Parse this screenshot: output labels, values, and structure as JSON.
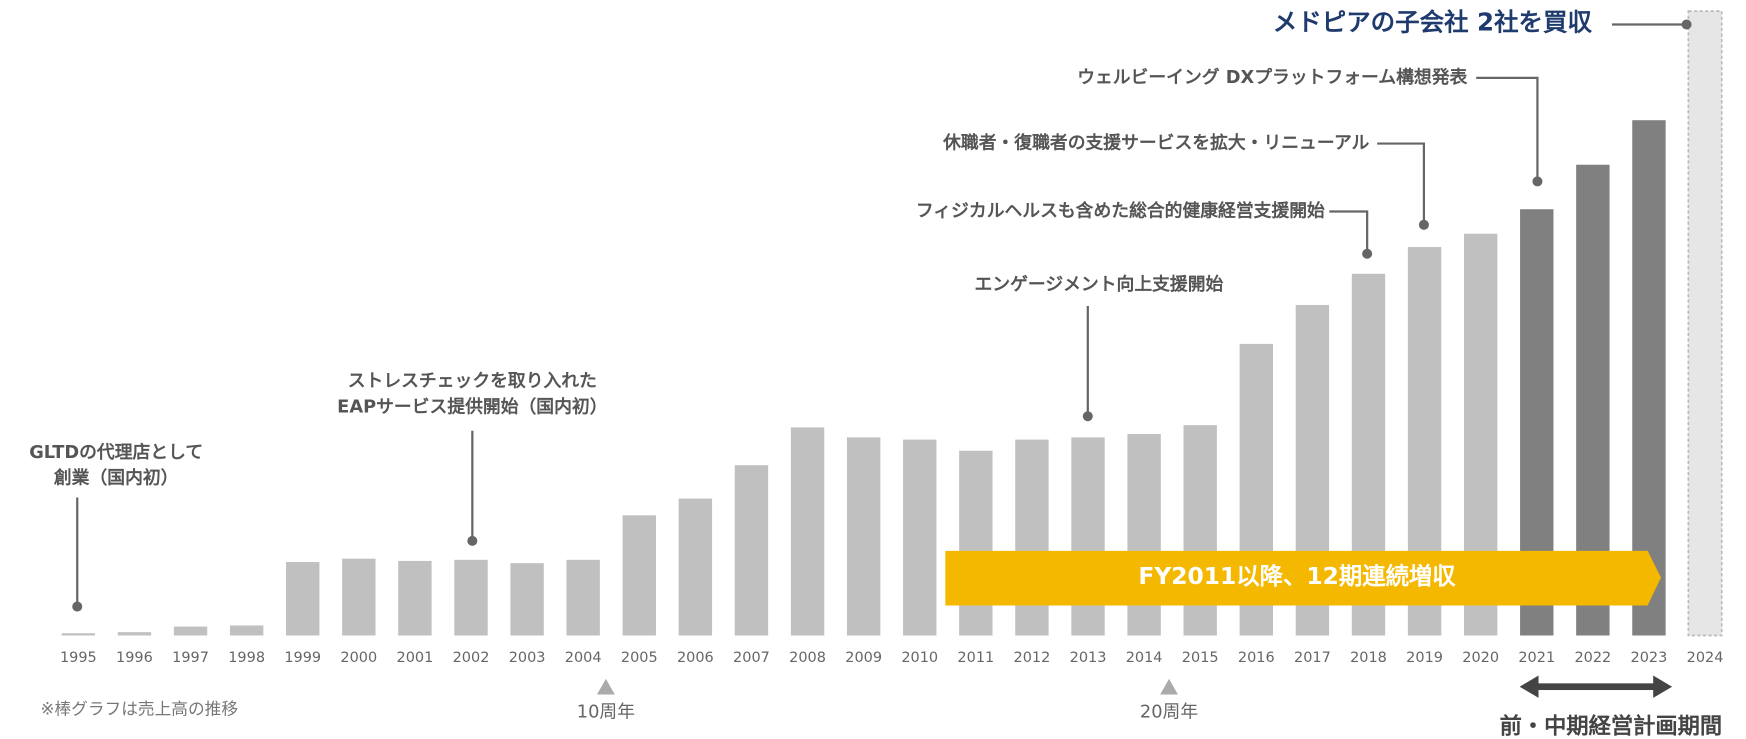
{
  "chart_data": {
    "type": "bar",
    "categories": [
      "1995",
      "1996",
      "1997",
      "1998",
      "1999",
      "2000",
      "2001",
      "2002",
      "2003",
      "2004",
      "2005",
      "2006",
      "2007",
      "2008",
      "2009",
      "2010",
      "2011",
      "2012",
      "2013",
      "2014",
      "2015",
      "2016",
      "2017",
      "2018",
      "2019",
      "2020",
      "2021",
      "2022",
      "2023",
      "2024"
    ],
    "values": [
      2,
      3,
      8,
      9,
      66,
      69,
      67,
      68,
      65,
      68,
      108,
      123,
      153,
      187,
      178,
      176,
      166,
      176,
      178,
      181,
      189,
      262,
      297,
      325,
      349,
      361,
      383,
      423,
      463,
      561
    ],
    "colors": [
      "#c0c0c0",
      "#c0c0c0",
      "#c0c0c0",
      "#c0c0c0",
      "#c0c0c0",
      "#c0c0c0",
      "#c0c0c0",
      "#c0c0c0",
      "#c0c0c0",
      "#c0c0c0",
      "#c0c0c0",
      "#c0c0c0",
      "#c0c0c0",
      "#c0c0c0",
      "#c0c0c0",
      "#c0c0c0",
      "#c0c0c0",
      "#c0c0c0",
      "#c0c0c0",
      "#c0c0c0",
      "#c0c0c0",
      "#c0c0c0",
      "#c0c0c0",
      "#c0c0c0",
      "#c0c0c0",
      "#c0c0c0",
      "#808080",
      "#808080",
      "#808080",
      "#e6e6e6"
    ],
    "ylim": [
      0,
      561
    ],
    "annotations": [
      [
        "GLTDの代理店として",
        "創業（国内初）"
      ],
      [
        "ストレスチェックを取り入れた",
        "EAPサービス提供開始（国内初）"
      ],
      [
        "エンゲージメント向上支援開始"
      ],
      [
        "フィジカルヘルスも含めた総合的健康経営支援開始"
      ],
      [
        "休職者・復職者の支援サービスを拡大・リニューアル"
      ],
      [
        "ウェルビーイング DXプラットフォーム構想発表"
      ],
      [
        "メドピアの子会社 2社を買収"
      ]
    ],
    "banner": "FY2011以降、12期連続増収",
    "note": "※棒グラフは売上高の推移",
    "milestones": [
      "10周年",
      "20周年"
    ],
    "period_label": "前・中期経営計画期間"
  }
}
